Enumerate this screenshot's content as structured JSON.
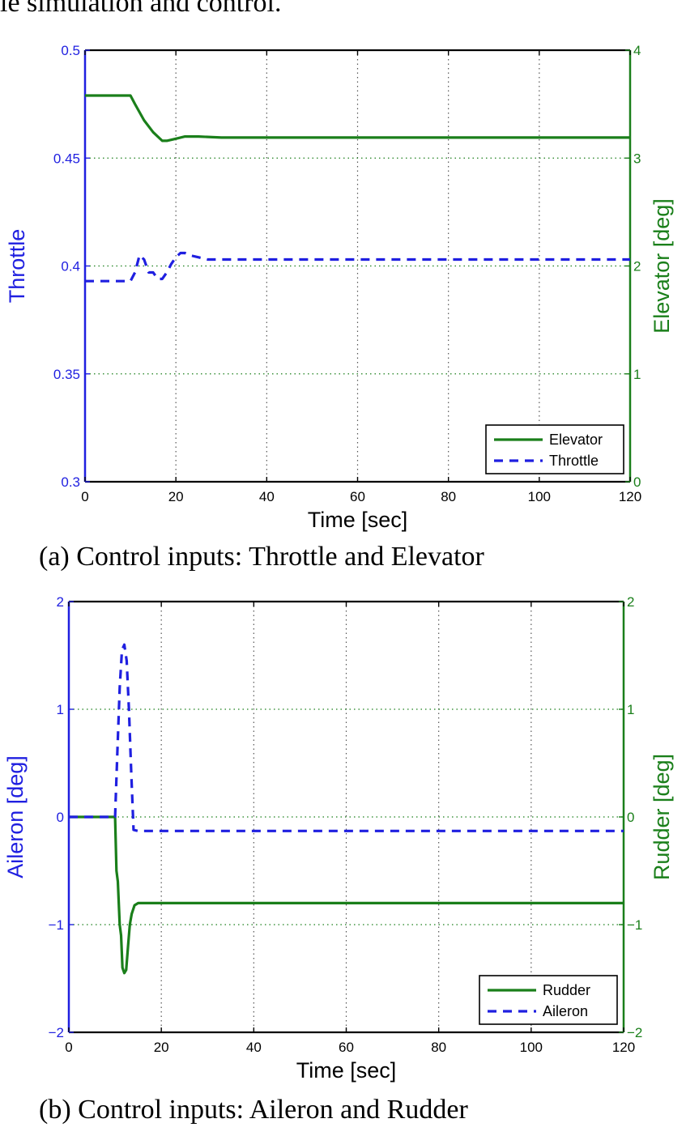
{
  "top_text": "le simulation and control.",
  "colors": {
    "left_axis": "#1f1fe0",
    "right_axis": "#1a7f1a",
    "grid": "#555555"
  },
  "chart_data": [
    {
      "type": "line",
      "caption": "(a) Control inputs: Throttle and Elevator",
      "xlabel": "Time [sec]",
      "ylabel_left": "Throttle",
      "ylabel_right": "Elevator [deg]",
      "xlim": [
        0,
        120
      ],
      "ylim_left": [
        0.3,
        0.5
      ],
      "ylim_right": [
        0,
        4
      ],
      "x_ticks": [
        "0",
        "20",
        "40",
        "60",
        "80",
        "100",
        "120"
      ],
      "y_ticks_left": [
        "0.3",
        "0.35",
        "0.4",
        "0.45",
        "0.5"
      ],
      "y_ticks_right": [
        "0",
        "1",
        "2",
        "3",
        "4"
      ],
      "grid": true,
      "legend_position": "bottom-right",
      "series": [
        {
          "name": "Elevator",
          "axis": "right",
          "style": "solid",
          "x": [
            0,
            10,
            11,
            13,
            15,
            17,
            18,
            20,
            22,
            25,
            30,
            40,
            60,
            80,
            100,
            120
          ],
          "y": [
            3.58,
            3.58,
            3.5,
            3.35,
            3.24,
            3.16,
            3.16,
            3.18,
            3.2,
            3.2,
            3.19,
            3.19,
            3.19,
            3.19,
            3.19,
            3.19
          ]
        },
        {
          "name": "Throttle",
          "axis": "left",
          "style": "dashed",
          "x": [
            0,
            10,
            11,
            12,
            13,
            14,
            15,
            16,
            17,
            18,
            19,
            20,
            21,
            22,
            23,
            25,
            27,
            30,
            40,
            60,
            80,
            100,
            120
          ],
          "y": [
            0.393,
            0.393,
            0.397,
            0.405,
            0.403,
            0.397,
            0.397,
            0.394,
            0.394,
            0.397,
            0.401,
            0.404,
            0.406,
            0.406,
            0.405,
            0.404,
            0.403,
            0.403,
            0.403,
            0.403,
            0.403,
            0.403,
            0.403
          ]
        }
      ]
    },
    {
      "type": "line",
      "caption": "(b) Control inputs: Aileron and Rudder",
      "xlabel": "Time [sec]",
      "ylabel_left": "Aileron [deg]",
      "ylabel_right": "Rudder [deg]",
      "xlim": [
        0,
        120
      ],
      "ylim_left": [
        -2,
        2
      ],
      "ylim_right": [
        -2,
        2
      ],
      "x_ticks": [
        "0",
        "20",
        "40",
        "60",
        "80",
        "100",
        "120"
      ],
      "y_ticks_left": [
        "−2",
        "−1",
        "0",
        "1",
        "2"
      ],
      "y_ticks_right": [
        "−2",
        "−1",
        "0",
        "1",
        "2"
      ],
      "grid": true,
      "legend_position": "bottom-right",
      "series": [
        {
          "name": "Rudder",
          "axis": "right",
          "style": "solid",
          "x": [
            0,
            10,
            10.3,
            10.6,
            11,
            11.3,
            11.6,
            12,
            12.4,
            12.8,
            13.2,
            13.6,
            14.2,
            15,
            20,
            40,
            60,
            80,
            100,
            120
          ],
          "y": [
            0,
            0,
            -0.5,
            -0.6,
            -1.0,
            -1.1,
            -1.4,
            -1.45,
            -1.42,
            -1.2,
            -1.0,
            -0.9,
            -0.82,
            -0.8,
            -0.8,
            -0.8,
            -0.8,
            -0.8,
            -0.8,
            -0.8
          ]
        },
        {
          "name": "Aileron",
          "axis": "left",
          "style": "dashed",
          "x": [
            0,
            10,
            10.5,
            11,
            11.5,
            12,
            12.5,
            13,
            13.5,
            14,
            15,
            20,
            40,
            60,
            80,
            100,
            120
          ],
          "y": [
            0,
            0,
            0.6,
            1.2,
            1.55,
            1.6,
            1.45,
            1.0,
            0.4,
            -0.12,
            -0.13,
            -0.13,
            -0.13,
            -0.13,
            -0.13,
            -0.13,
            -0.13
          ]
        }
      ]
    }
  ]
}
